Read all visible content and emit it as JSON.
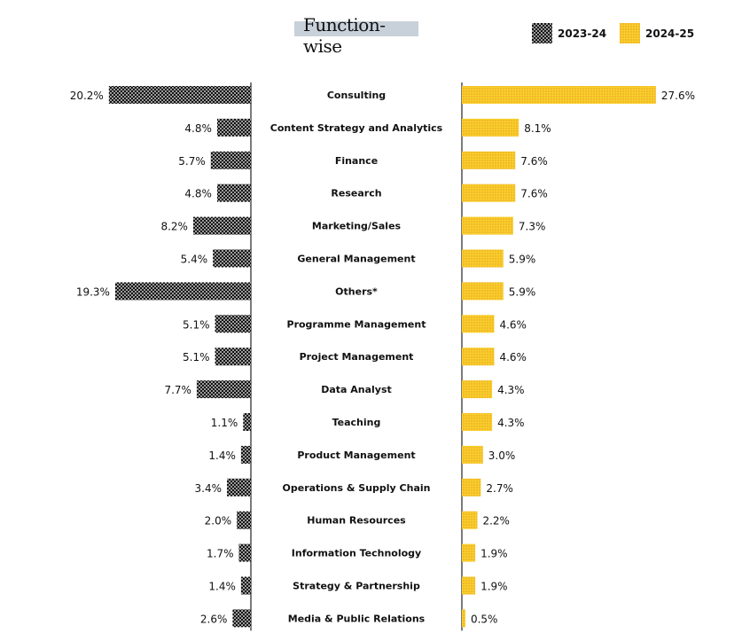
{
  "chart_data": {
    "type": "bar",
    "orientation": "horizontal-butterfly",
    "title": "Function-wise",
    "categories": [
      "Consulting",
      "Content Strategy and Analytics",
      "Finance",
      "Research",
      "Marketing/Sales",
      "General Management",
      "Others*",
      "Programme Management",
      "Project Management",
      "Data Analyst",
      "Teaching",
      "Product Management",
      "Operations & Supply Chain",
      "Human Resources",
      "Information Technology",
      "Strategy & Partnership",
      "Media & Public Relations"
    ],
    "series": [
      {
        "name": "2023-24",
        "side": "left",
        "color": "#000000",
        "values": [
          20.2,
          4.8,
          5.7,
          4.8,
          8.2,
          5.4,
          19.3,
          5.1,
          5.1,
          7.7,
          1.1,
          1.4,
          3.4,
          2.0,
          1.7,
          1.4,
          2.6
        ]
      },
      {
        "name": "2024-25",
        "side": "right",
        "color": "#f5c518",
        "values": [
          27.6,
          8.1,
          7.6,
          7.6,
          7.3,
          5.9,
          5.9,
          4.6,
          4.6,
          4.3,
          4.3,
          3.0,
          2.7,
          2.2,
          1.9,
          1.9,
          0.5
        ]
      }
    ],
    "value_suffix": "%",
    "legend_position": "top-right",
    "grid": false
  }
}
